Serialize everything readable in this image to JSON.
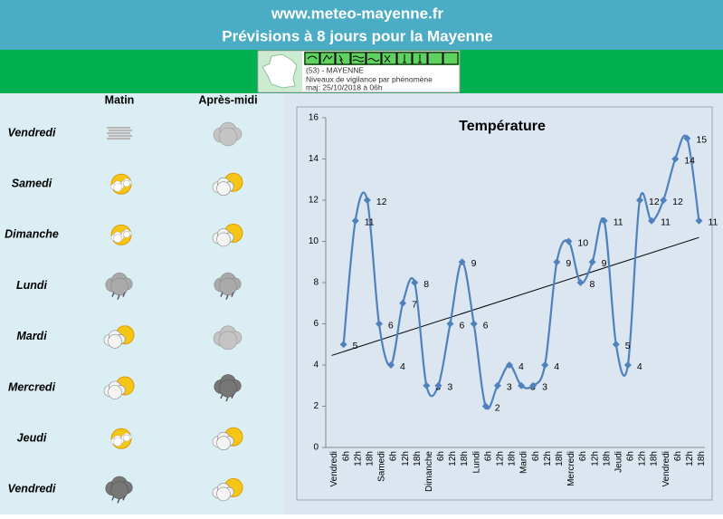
{
  "header": {
    "site": "www.meteo-mayenne.fr",
    "title": "Prévisions à 8 jours pour la Mayenne"
  },
  "vigilance": {
    "department": "(53) - MAYENNE",
    "caption": "Niveaux de vigilance par phénomène",
    "updated": "maj: 25/10/2018 à 06h"
  },
  "forecast": {
    "columns": [
      "Matin",
      "Après-midi"
    ],
    "days": [
      "Vendredi",
      "Samedi",
      "Dimanche",
      "Lundi",
      "Mardi",
      "Mercredi",
      "Jeudi",
      "Vendredi"
    ]
  },
  "chart_data": {
    "type": "line",
    "title": "Température",
    "categories": [
      "Vendredi",
      "6h",
      "12h",
      "18h",
      "Samedi",
      "6h",
      "12h",
      "18h",
      "Dimanche",
      "6h",
      "12h",
      "18h",
      "Lundi",
      "6h",
      "12h",
      "18h",
      "Mardi",
      "6h",
      "12h",
      "18h",
      "Mercredi",
      "6h",
      "12h",
      "18h",
      "Jeudi",
      "6h",
      "12h",
      "18h",
      "Vendredi",
      "6h",
      "12h",
      "18h"
    ],
    "values": [
      null,
      5,
      11,
      12,
      6,
      4,
      7,
      8,
      3,
      3,
      6,
      9,
      6,
      2,
      3,
      4,
      3,
      3,
      4,
      9,
      10,
      8,
      9,
      11,
      5,
      4,
      12,
      11,
      12,
      14,
      15,
      11
    ],
    "color": "#4f81bd",
    "trendline": "linear",
    "trend_color": "#000000",
    "ylim": [
      0,
      16
    ],
    "yticks": [
      0,
      2,
      4,
      6,
      8,
      10,
      12,
      14,
      16
    ]
  }
}
